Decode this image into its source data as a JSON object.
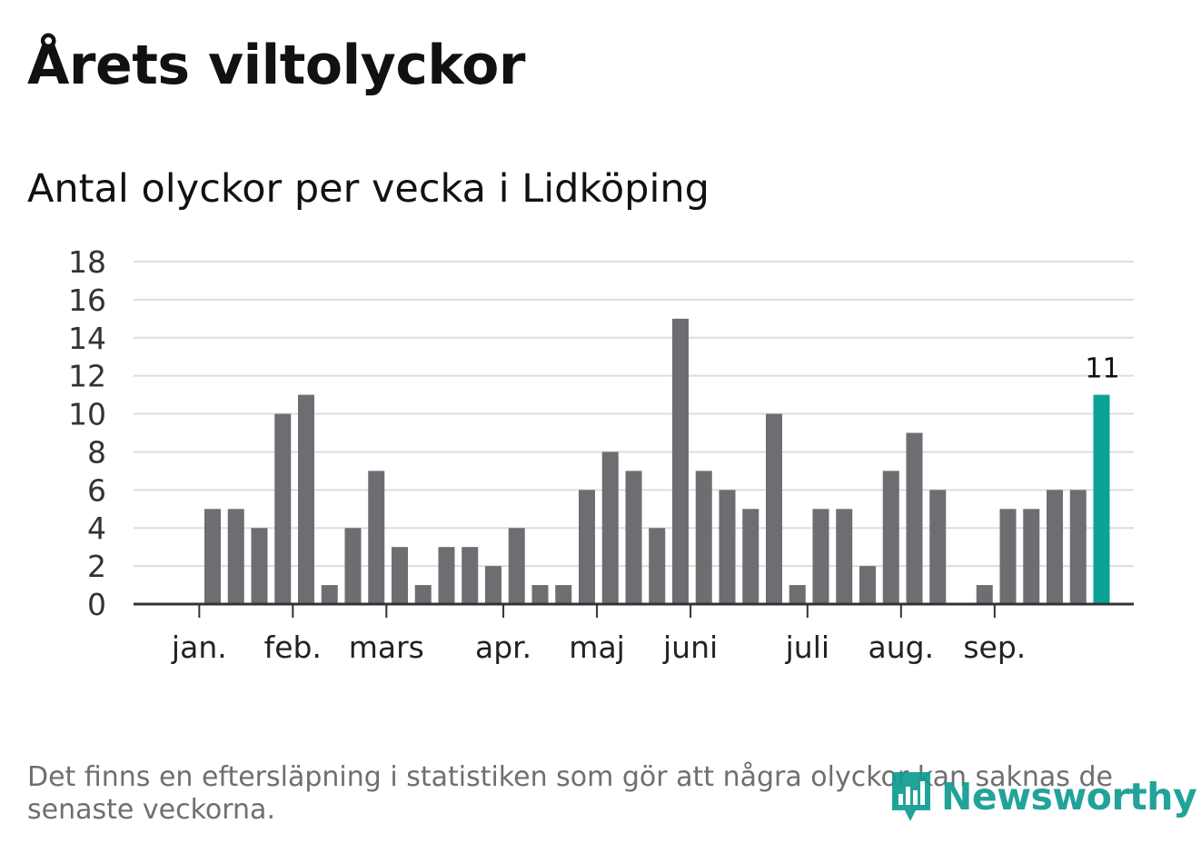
{
  "title": "Årets viltolyckor",
  "subtitle": "Antal olyckor per vecka i Lidköping",
  "footnote": "Det finns en eftersläpning i statistiken som gör att några olyckor kan saknas de senaste veckorna.",
  "logo": {
    "text": "Newsworthy",
    "icon": "chart-speech-bubble-icon"
  },
  "colors": {
    "bar": "#6e6d72",
    "highlight": "#0aa396",
    "grid": "#dddddd",
    "axis": "#333333",
    "text": "#111111",
    "muted": "#6f6f72",
    "brand": "#0f9c92"
  },
  "chart_data": {
    "type": "bar",
    "title": "Antal olyckor per vecka i Lidköping",
    "xlabel": "",
    "ylabel": "",
    "ylim": [
      0,
      18
    ],
    "yticks": [
      0,
      2,
      4,
      6,
      8,
      10,
      12,
      14,
      16,
      18
    ],
    "grid": true,
    "weeks": [
      1,
      2,
      3,
      4,
      5,
      6,
      7,
      8,
      9,
      10,
      11,
      12,
      13,
      14,
      15,
      16,
      17,
      18,
      19,
      20,
      21,
      22,
      23,
      24,
      25,
      26,
      27,
      28,
      29,
      30,
      31,
      32,
      33,
      34,
      35,
      36,
      37,
      38,
      39,
      40,
      41
    ],
    "values": [
      0,
      0,
      5,
      5,
      4,
      10,
      11,
      1,
      4,
      7,
      3,
      1,
      3,
      3,
      2,
      4,
      1,
      1,
      6,
      8,
      7,
      4,
      15,
      7,
      6,
      5,
      10,
      1,
      5,
      5,
      2,
      7,
      9,
      6,
      0,
      1,
      5,
      5,
      6,
      6,
      11
    ],
    "highlight_index": 40,
    "highlight_label": "11",
    "month_ticks": [
      {
        "label": "jan.",
        "week": 2.43
      },
      {
        "label": "feb.",
        "week": 6.43
      },
      {
        "label": "mars",
        "week": 10.43
      },
      {
        "label": "apr.",
        "week": 15.43
      },
      {
        "label": "maj",
        "week": 19.43
      },
      {
        "label": "juni",
        "week": 23.43
      },
      {
        "label": "juli",
        "week": 28.43
      },
      {
        "label": "aug.",
        "week": 32.43
      },
      {
        "label": "sep.",
        "week": 36.43
      }
    ]
  }
}
